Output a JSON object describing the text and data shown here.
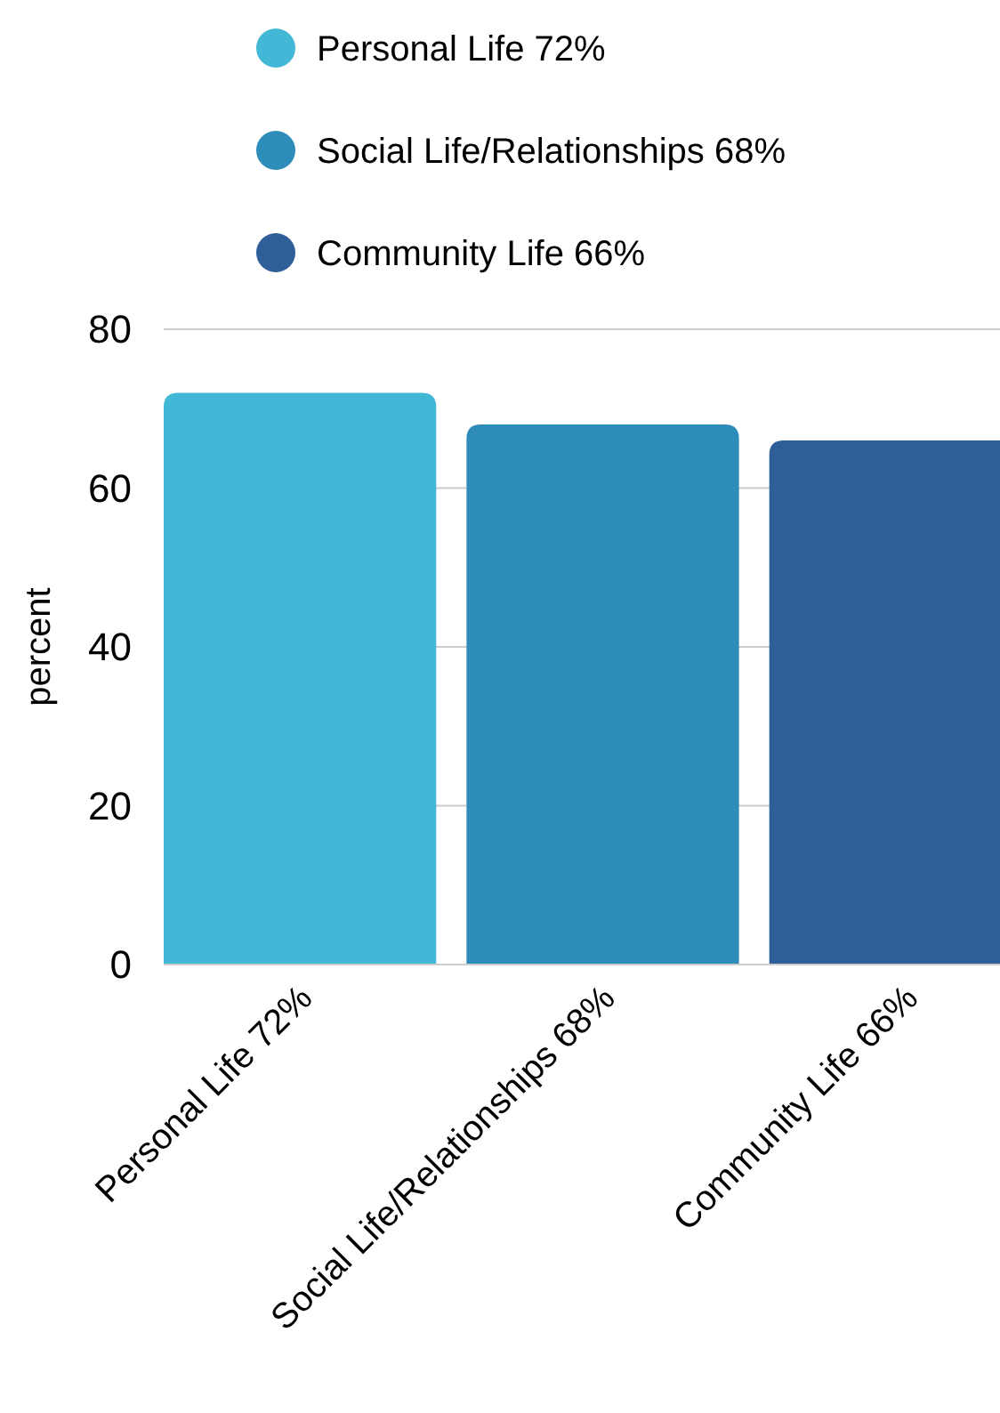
{
  "chart_data": {
    "type": "bar",
    "ylabel": "percent",
    "categories": [
      "Personal Life 72%",
      "Social Life/Relationships 68%",
      "Community Life 66%"
    ],
    "series": [
      {
        "name": "Personal Life 72%",
        "color": "#42b8d6",
        "values": [
          72,
          null,
          null
        ]
      },
      {
        "name": "Social Life/Relationships 68%",
        "color": "#2e8cba",
        "values": [
          null,
          68,
          null
        ]
      },
      {
        "name": "Community Life 66%",
        "color": "#2e5f99",
        "values": [
          null,
          null,
          66
        ]
      }
    ],
    "ylim": [
      0,
      80
    ],
    "yticks": [
      0,
      20,
      40,
      60,
      80
    ],
    "grid": "y",
    "legend": "top"
  }
}
